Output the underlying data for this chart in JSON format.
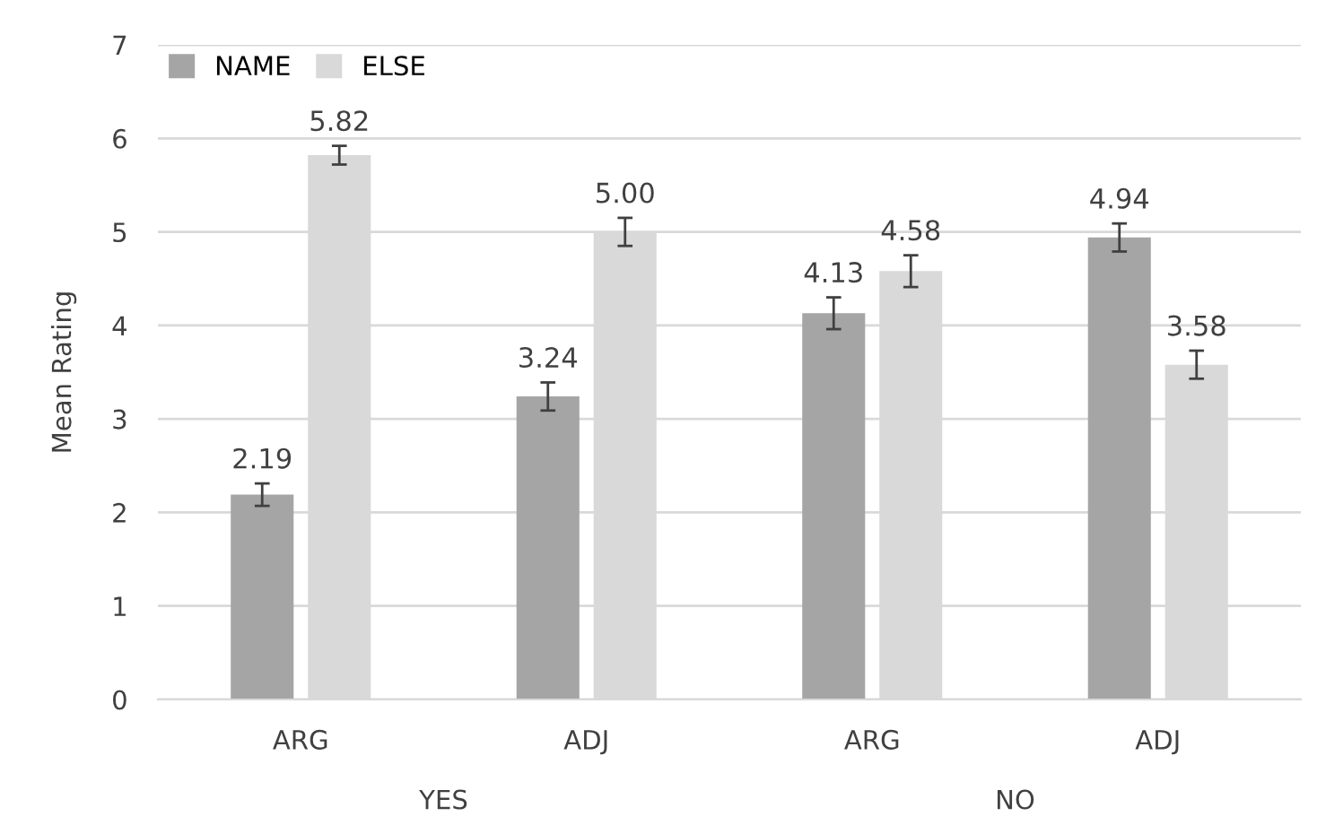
{
  "chart_data": {
    "type": "bar",
    "ylabel": "Mean Rating",
    "categories": [
      "ARG",
      "ADJ",
      "ARG",
      "ADJ"
    ],
    "series": [
      {
        "name": "NAME",
        "color": "#a5a5a5",
        "values": [
          2.19,
          3.24,
          4.13,
          4.94
        ],
        "errors": [
          0.12,
          0.15,
          0.17,
          0.15
        ],
        "value_labels": [
          "2.19",
          "3.24",
          "4.13",
          "4.94"
        ]
      },
      {
        "name": "ELSE",
        "color": "#d9d9d9",
        "values": [
          5.82,
          5.0,
          4.58,
          3.58
        ],
        "errors": [
          0.1,
          0.15,
          0.17,
          0.15
        ],
        "value_labels": [
          "5.82",
          "5.00",
          "4.58",
          "3.58"
        ]
      }
    ],
    "ylim": [
      0,
      7
    ],
    "yticks": [
      0,
      1,
      2,
      3,
      4,
      5,
      6,
      7
    ],
    "grid": "y",
    "legend": "top left",
    "annotations": [
      "YES",
      "NO"
    ]
  }
}
